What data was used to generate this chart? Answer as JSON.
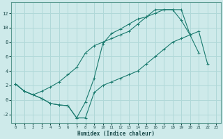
{
  "xlabel": "Humidex (Indice chaleur)",
  "background_color": "#ceeaea",
  "grid_color": "#b0d8d8",
  "line_color": "#1a7a6e",
  "xlim": [
    -0.5,
    23.5
  ],
  "ylim": [
    -3.2,
    13.5
  ],
  "xticks": [
    0,
    1,
    2,
    3,
    4,
    5,
    6,
    7,
    8,
    9,
    10,
    11,
    12,
    13,
    14,
    15,
    16,
    17,
    18,
    19,
    20,
    21,
    22,
    23
  ],
  "yticks": [
    -2,
    0,
    2,
    4,
    6,
    8,
    10,
    12
  ],
  "line1_x": [
    0,
    1,
    2,
    3,
    4,
    5,
    6,
    7,
    8,
    9,
    10,
    11,
    12,
    13,
    14,
    15,
    16,
    17,
    18,
    19,
    20,
    21,
    22
  ],
  "line1_y": [
    2.2,
    1.2,
    0.7,
    0.2,
    -0.5,
    -0.7,
    -0.8,
    -2.5,
    -2.5,
    1.0,
    2.0,
    2.5,
    3.0,
    3.5,
    4.0,
    5.0,
    6.0,
    7.0,
    8.0,
    8.5,
    9.0,
    9.5,
    5.0
  ],
  "line2_x": [
    0,
    1,
    2,
    3,
    4,
    5,
    6,
    7,
    8,
    9,
    10,
    11,
    12,
    13,
    14,
    15,
    16,
    17,
    18,
    19,
    20,
    21
  ],
  "line2_y": [
    2.2,
    1.2,
    0.7,
    0.2,
    -0.5,
    -0.7,
    -0.8,
    -2.5,
    -0.3,
    3.0,
    7.8,
    9.2,
    9.8,
    10.5,
    11.2,
    11.5,
    12.0,
    12.5,
    12.5,
    12.5,
    9.0,
    6.5
  ],
  "line3_x": [
    0,
    1,
    2,
    3,
    4,
    5,
    6,
    7,
    8,
    9,
    10,
    11,
    12,
    13,
    14,
    15,
    16,
    17,
    18,
    19,
    20
  ],
  "line3_y": [
    2.2,
    1.2,
    0.7,
    1.2,
    1.8,
    2.5,
    3.5,
    4.5,
    6.5,
    7.5,
    8.0,
    8.5,
    9.0,
    9.5,
    10.5,
    11.5,
    12.5,
    12.5,
    12.5,
    11.0,
    9.0
  ]
}
